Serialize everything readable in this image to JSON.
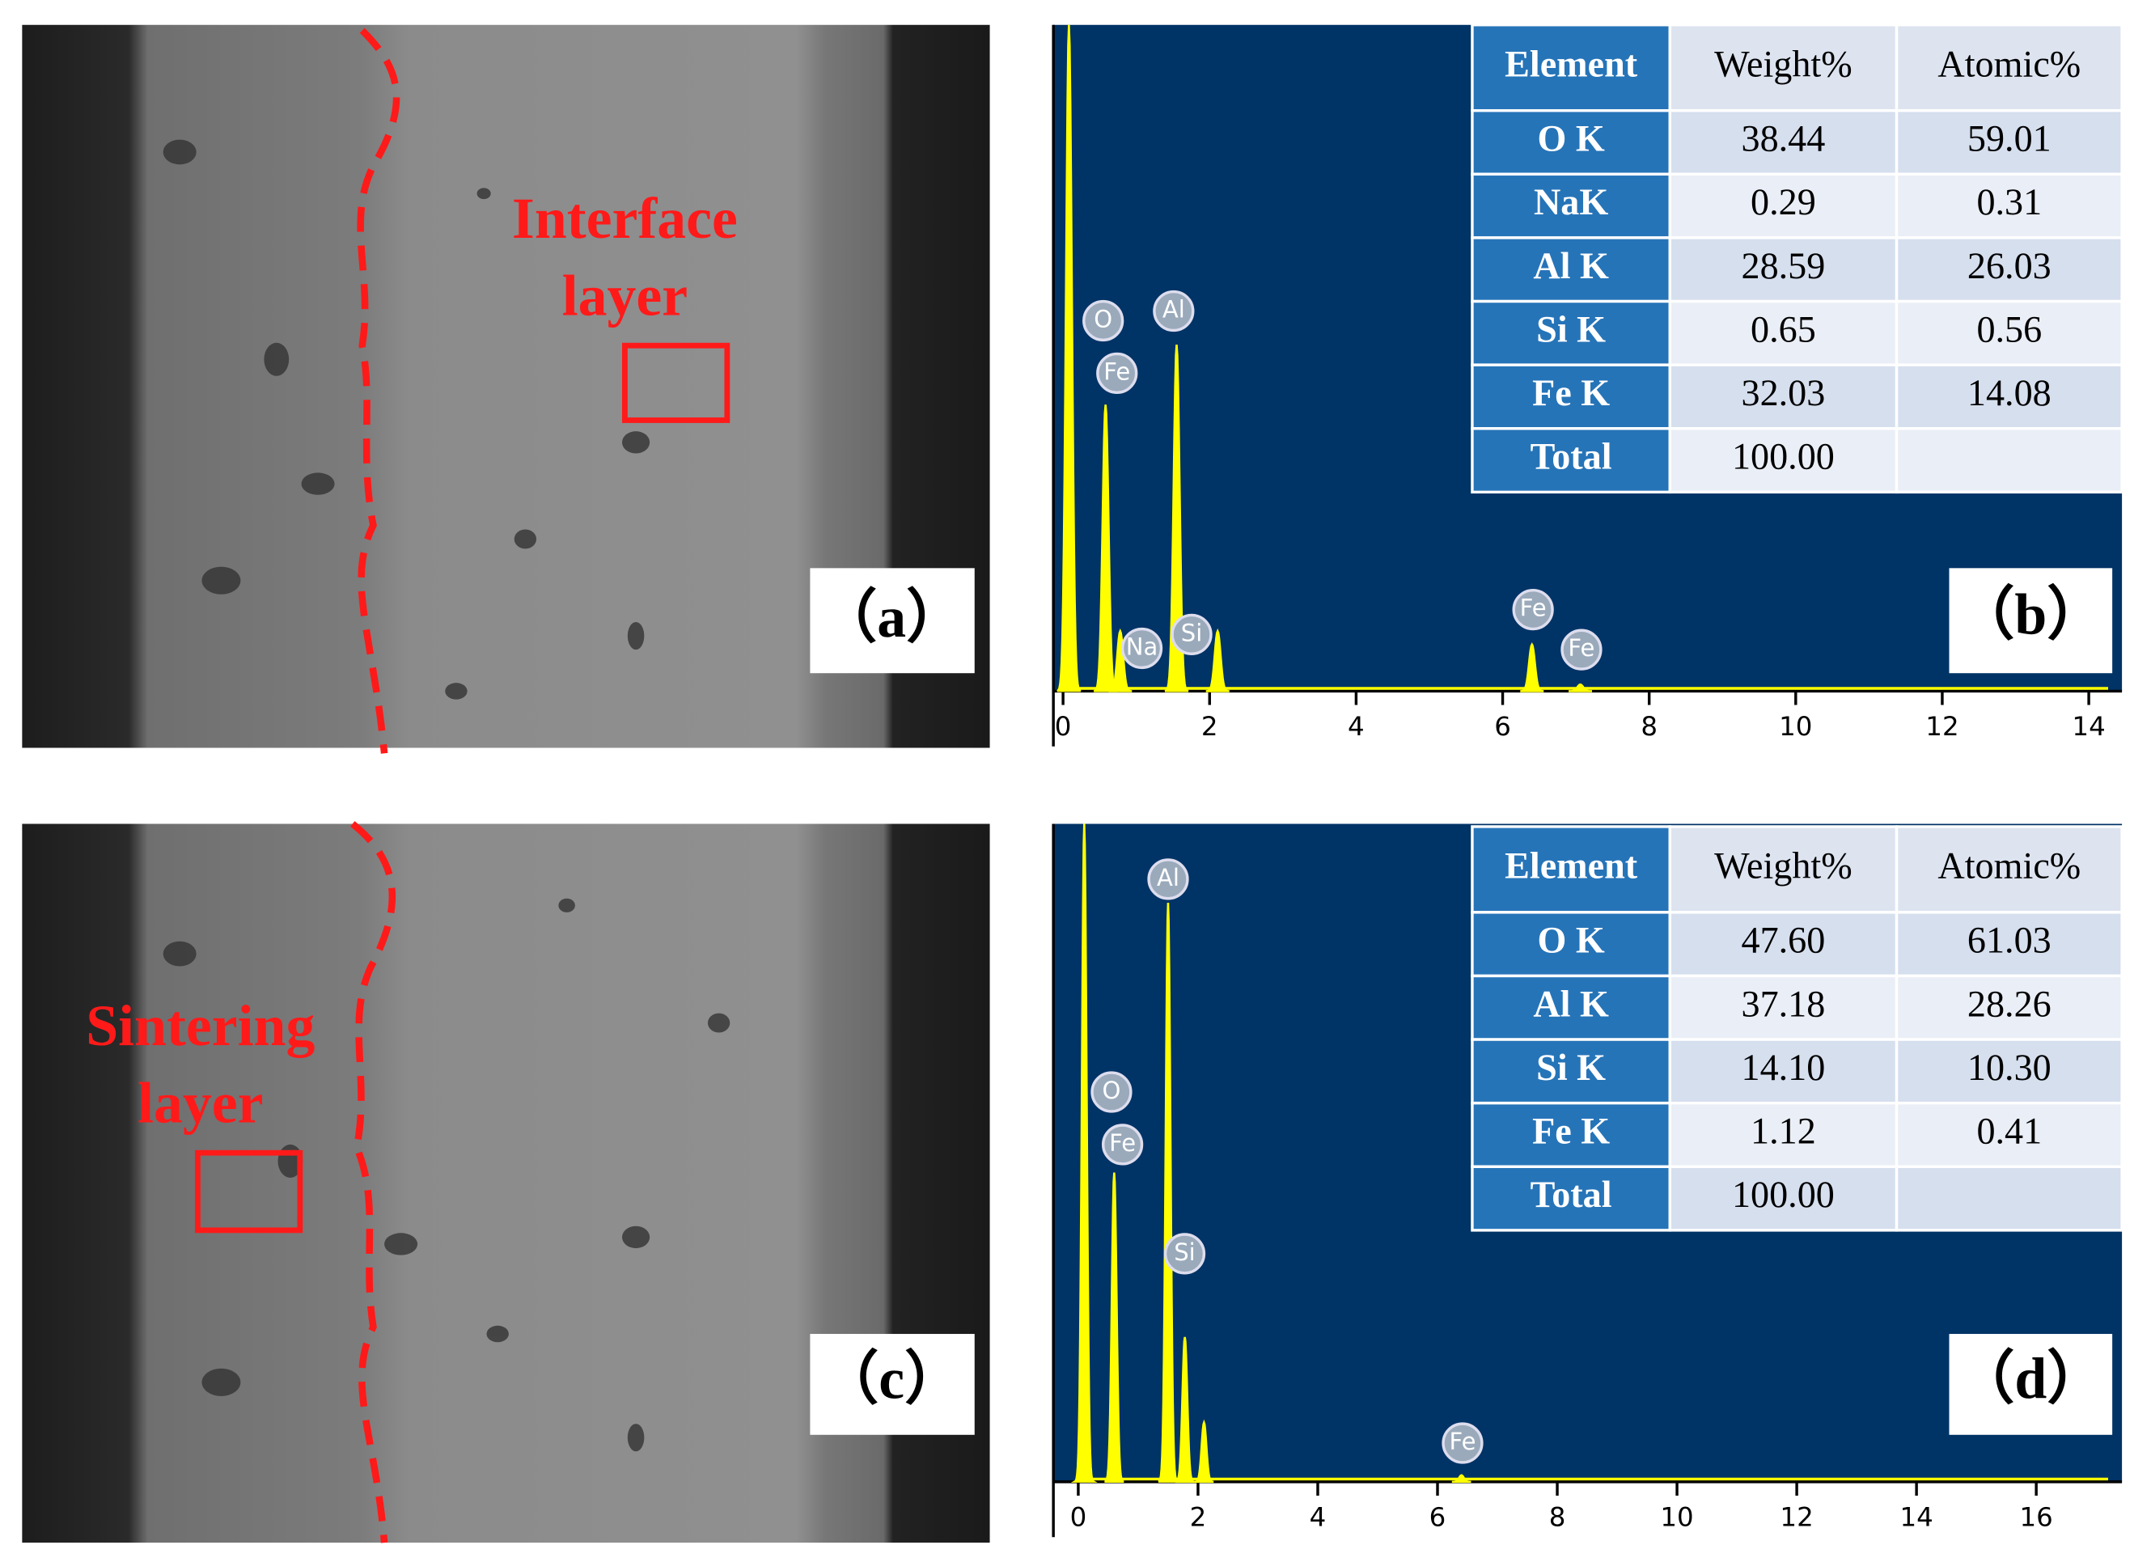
{
  "panel_a": {
    "label": "（a）",
    "annotation": [
      "Interface",
      "layer"
    ]
  },
  "panel_b": {
    "label": "（b）",
    "spectrum": {
      "xlim": [
        -0.15,
        14.5
      ],
      "ylim": [
        0,
        100
      ],
      "xticks": [
        0,
        2,
        4,
        6,
        8,
        10,
        12,
        14
      ],
      "color": "#ffff00",
      "peaks": [
        {
          "energy": 0.08,
          "height": 100
        },
        {
          "energy": 0.58,
          "height": 43
        },
        {
          "energy": 0.78,
          "height": 9
        },
        {
          "energy": 1.55,
          "height": 52
        },
        {
          "energy": 2.11,
          "height": 9
        },
        {
          "energy": 6.4,
          "height": 7
        },
        {
          "energy": 7.06,
          "height": 1
        }
      ],
      "peak_labels": [
        "O",
        "Fe",
        "Al",
        "Na",
        "Si",
        "Fe",
        "Fe"
      ]
    },
    "table": {
      "header": [
        "Element",
        "Weight%",
        "Atomic%"
      ],
      "rows": [
        [
          "O K",
          "38.44",
          "59.01"
        ],
        [
          "NaK",
          "0.29",
          "0.31"
        ],
        [
          "Al K",
          "28.59",
          "26.03"
        ],
        [
          "Si K",
          "0.65",
          "0.56"
        ],
        [
          "Fe K",
          "32.03",
          "14.08"
        ],
        [
          "Total",
          "100.00"
        ]
      ]
    }
  },
  "panel_c": {
    "label": "（c）",
    "annotation": [
      "Sintering",
      "layer"
    ]
  },
  "panel_d": {
    "label": "（d）",
    "spectrum": {
      "xlim": [
        -0.15,
        17.4
      ],
      "ylim": [
        0,
        100
      ],
      "xticks": [
        0,
        2,
        4,
        6,
        8,
        10,
        12,
        14,
        16
      ],
      "color": "#ffff00",
      "peaks": [
        {
          "energy": 0.1,
          "height": 100
        },
        {
          "energy": 0.6,
          "height": 47
        },
        {
          "energy": 1.5,
          "height": 88
        },
        {
          "energy": 1.78,
          "height": 22
        },
        {
          "energy": 2.1,
          "height": 9
        },
        {
          "energy": 6.4,
          "height": 1
        }
      ],
      "peak_labels": [
        "O",
        "Fe",
        "Al",
        "Si",
        "Fe"
      ]
    },
    "table": {
      "header": [
        "Element",
        "Weight%",
        "Atomic%"
      ],
      "rows": [
        [
          "O K",
          "47.60",
          "61.03"
        ],
        [
          "Al K",
          "37.18",
          "28.26"
        ],
        [
          "Si K",
          "14.10",
          "10.30"
        ],
        [
          "Fe K",
          "1.12",
          "0.41"
        ],
        [
          "Total",
          "100.00"
        ]
      ]
    }
  }
}
